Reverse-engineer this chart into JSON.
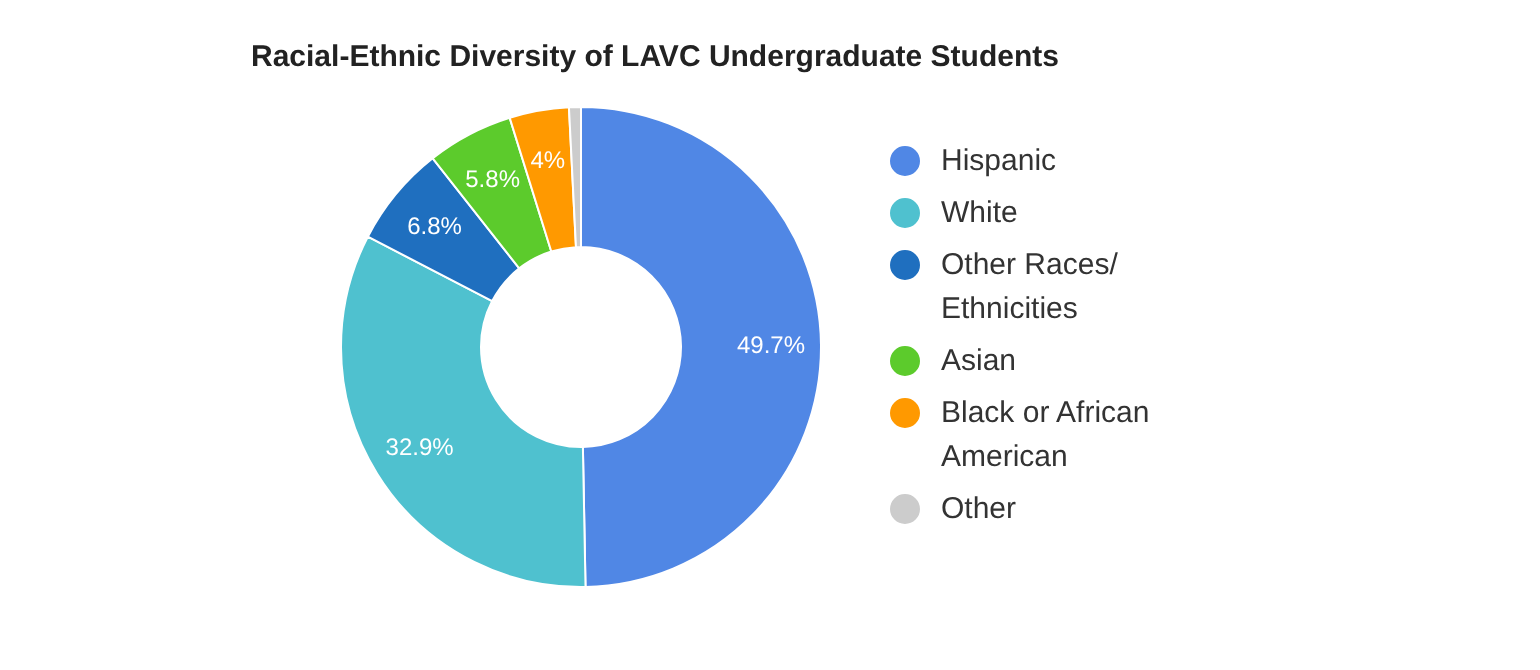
{
  "chart_data": {
    "type": "donut",
    "title": "Racial-Ethnic Diversity of LAVC Undergraduate Students",
    "categories": [
      "Hispanic",
      "White",
      "Other Races/ Ethnicities",
      "Asian",
      "Black or African American",
      "Other"
    ],
    "values": [
      49.7,
      32.9,
      6.8,
      5.8,
      4,
      0.8
    ],
    "colors": [
      "#5087e5",
      "#4fc1cf",
      "#1f6fbf",
      "#5ccb2c",
      "#ff9900",
      "#cccccc"
    ],
    "value_labels": [
      "49.7%",
      "32.9%",
      "6.8%",
      "5.8%",
      "4%",
      null
    ],
    "legend": "right"
  }
}
